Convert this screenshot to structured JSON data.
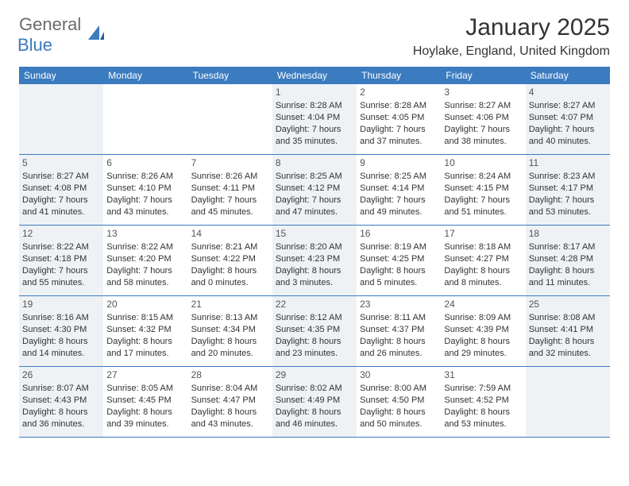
{
  "logo": {
    "text1": "General",
    "text2": "Blue"
  },
  "title": "January 2025",
  "location": "Hoylake, England, United Kingdom",
  "weekdays": [
    "Sunday",
    "Monday",
    "Tuesday",
    "Wednesday",
    "Thursday",
    "Friday",
    "Saturday"
  ],
  "header_bg": "#3b7bbf",
  "shade_bg": "#eef2f5",
  "weeks": [
    [
      {
        "n": "",
        "shaded": true
      },
      {
        "n": "",
        "shaded": false
      },
      {
        "n": "",
        "shaded": false
      },
      {
        "n": "1",
        "shaded": true,
        "sr": "8:28 AM",
        "ss": "4:04 PM",
        "dl": "7 hours and 35 minutes."
      },
      {
        "n": "2",
        "shaded": false,
        "sr": "8:28 AM",
        "ss": "4:05 PM",
        "dl": "7 hours and 37 minutes."
      },
      {
        "n": "3",
        "shaded": false,
        "sr": "8:27 AM",
        "ss": "4:06 PM",
        "dl": "7 hours and 38 minutes."
      },
      {
        "n": "4",
        "shaded": true,
        "sr": "8:27 AM",
        "ss": "4:07 PM",
        "dl": "7 hours and 40 minutes."
      }
    ],
    [
      {
        "n": "5",
        "shaded": true,
        "sr": "8:27 AM",
        "ss": "4:08 PM",
        "dl": "7 hours and 41 minutes."
      },
      {
        "n": "6",
        "shaded": false,
        "sr": "8:26 AM",
        "ss": "4:10 PM",
        "dl": "7 hours and 43 minutes."
      },
      {
        "n": "7",
        "shaded": false,
        "sr": "8:26 AM",
        "ss": "4:11 PM",
        "dl": "7 hours and 45 minutes."
      },
      {
        "n": "8",
        "shaded": true,
        "sr": "8:25 AM",
        "ss": "4:12 PM",
        "dl": "7 hours and 47 minutes."
      },
      {
        "n": "9",
        "shaded": false,
        "sr": "8:25 AM",
        "ss": "4:14 PM",
        "dl": "7 hours and 49 minutes."
      },
      {
        "n": "10",
        "shaded": false,
        "sr": "8:24 AM",
        "ss": "4:15 PM",
        "dl": "7 hours and 51 minutes."
      },
      {
        "n": "11",
        "shaded": true,
        "sr": "8:23 AM",
        "ss": "4:17 PM",
        "dl": "7 hours and 53 minutes."
      }
    ],
    [
      {
        "n": "12",
        "shaded": true,
        "sr": "8:22 AM",
        "ss": "4:18 PM",
        "dl": "7 hours and 55 minutes."
      },
      {
        "n": "13",
        "shaded": false,
        "sr": "8:22 AM",
        "ss": "4:20 PM",
        "dl": "7 hours and 58 minutes."
      },
      {
        "n": "14",
        "shaded": false,
        "sr": "8:21 AM",
        "ss": "4:22 PM",
        "dl": "8 hours and 0 minutes."
      },
      {
        "n": "15",
        "shaded": true,
        "sr": "8:20 AM",
        "ss": "4:23 PM",
        "dl": "8 hours and 3 minutes."
      },
      {
        "n": "16",
        "shaded": false,
        "sr": "8:19 AM",
        "ss": "4:25 PM",
        "dl": "8 hours and 5 minutes."
      },
      {
        "n": "17",
        "shaded": false,
        "sr": "8:18 AM",
        "ss": "4:27 PM",
        "dl": "8 hours and 8 minutes."
      },
      {
        "n": "18",
        "shaded": true,
        "sr": "8:17 AM",
        "ss": "4:28 PM",
        "dl": "8 hours and 11 minutes."
      }
    ],
    [
      {
        "n": "19",
        "shaded": true,
        "sr": "8:16 AM",
        "ss": "4:30 PM",
        "dl": "8 hours and 14 minutes."
      },
      {
        "n": "20",
        "shaded": false,
        "sr": "8:15 AM",
        "ss": "4:32 PM",
        "dl": "8 hours and 17 minutes."
      },
      {
        "n": "21",
        "shaded": false,
        "sr": "8:13 AM",
        "ss": "4:34 PM",
        "dl": "8 hours and 20 minutes."
      },
      {
        "n": "22",
        "shaded": true,
        "sr": "8:12 AM",
        "ss": "4:35 PM",
        "dl": "8 hours and 23 minutes."
      },
      {
        "n": "23",
        "shaded": false,
        "sr": "8:11 AM",
        "ss": "4:37 PM",
        "dl": "8 hours and 26 minutes."
      },
      {
        "n": "24",
        "shaded": false,
        "sr": "8:09 AM",
        "ss": "4:39 PM",
        "dl": "8 hours and 29 minutes."
      },
      {
        "n": "25",
        "shaded": true,
        "sr": "8:08 AM",
        "ss": "4:41 PM",
        "dl": "8 hours and 32 minutes."
      }
    ],
    [
      {
        "n": "26",
        "shaded": true,
        "sr": "8:07 AM",
        "ss": "4:43 PM",
        "dl": "8 hours and 36 minutes."
      },
      {
        "n": "27",
        "shaded": false,
        "sr": "8:05 AM",
        "ss": "4:45 PM",
        "dl": "8 hours and 39 minutes."
      },
      {
        "n": "28",
        "shaded": false,
        "sr": "8:04 AM",
        "ss": "4:47 PM",
        "dl": "8 hours and 43 minutes."
      },
      {
        "n": "29",
        "shaded": true,
        "sr": "8:02 AM",
        "ss": "4:49 PM",
        "dl": "8 hours and 46 minutes."
      },
      {
        "n": "30",
        "shaded": false,
        "sr": "8:00 AM",
        "ss": "4:50 PM",
        "dl": "8 hours and 50 minutes."
      },
      {
        "n": "31",
        "shaded": false,
        "sr": "7:59 AM",
        "ss": "4:52 PM",
        "dl": "8 hours and 53 minutes."
      },
      {
        "n": "",
        "shaded": true
      }
    ]
  ]
}
